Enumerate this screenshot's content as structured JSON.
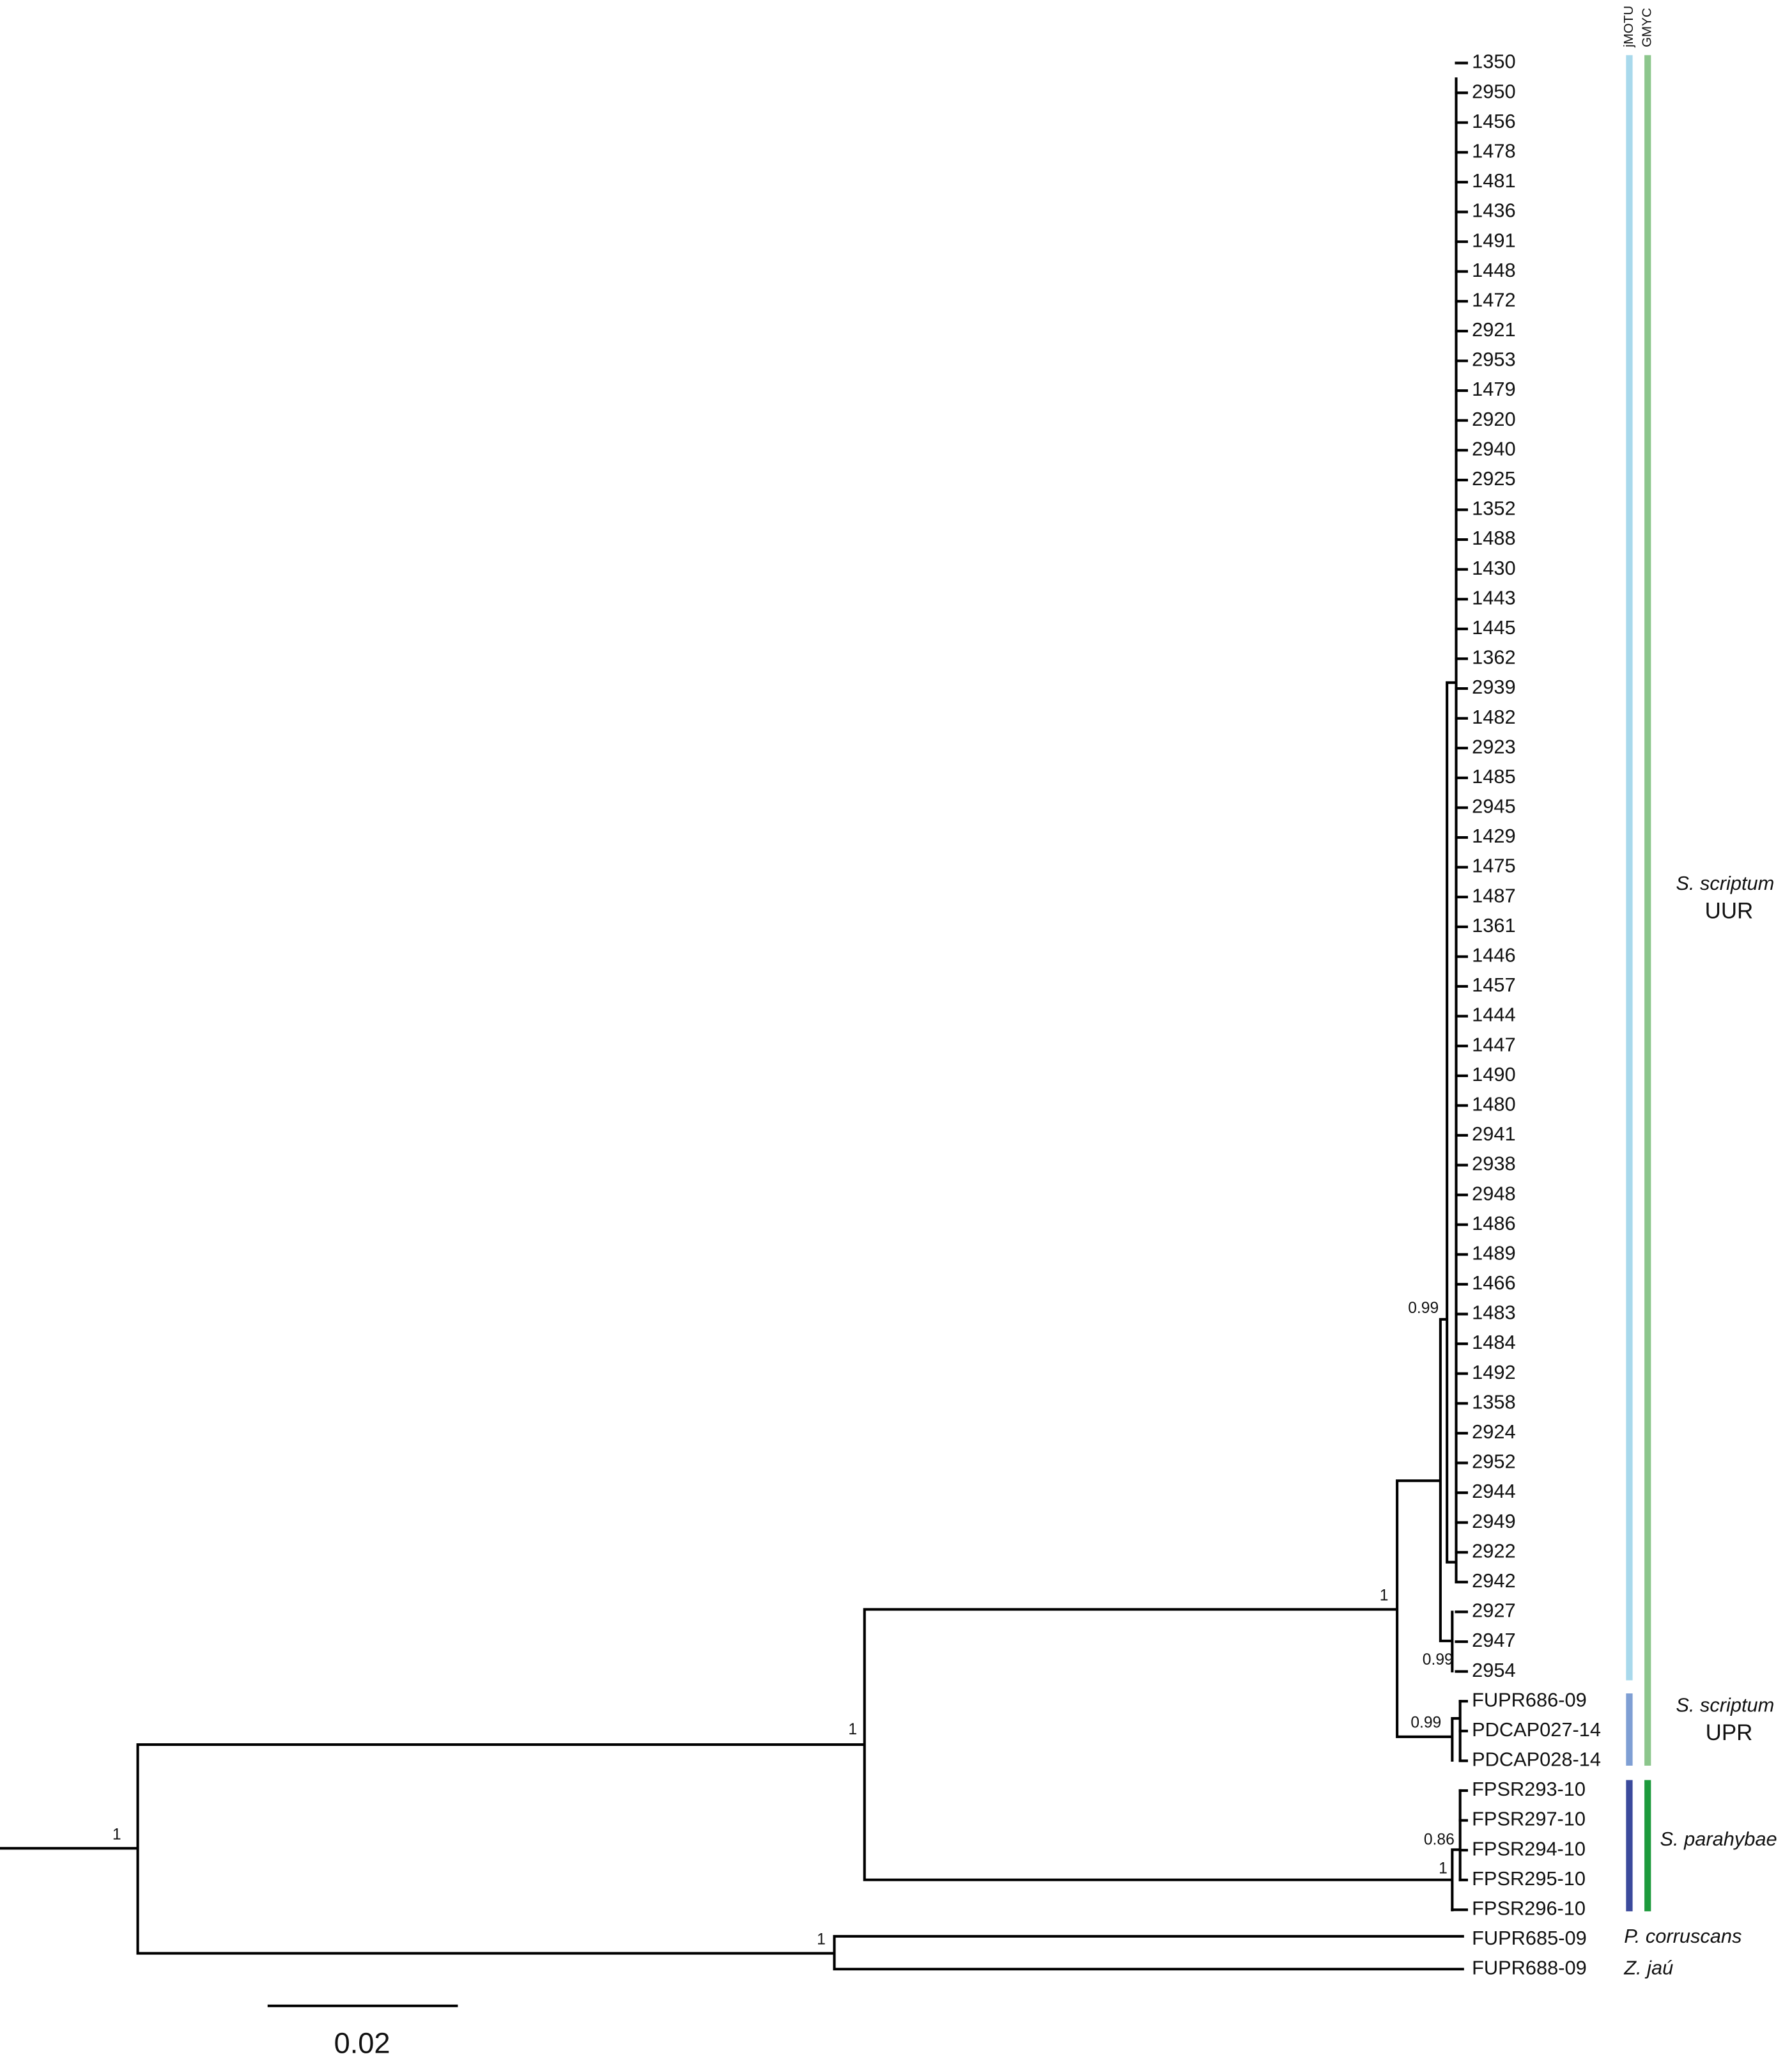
{
  "columns": [
    "jMOTU",
    "GMYC"
  ],
  "leaves": [
    "1350",
    "2950",
    "1456",
    "1478",
    "1481",
    "1436",
    "1491",
    "1448",
    "1472",
    "2921",
    "2953",
    "1479",
    "2920",
    "2940",
    "2925",
    "1352",
    "1488",
    "1430",
    "1443",
    "1445",
    "1362",
    "2939",
    "1482",
    "2923",
    "1485",
    "2945",
    "1429",
    "1475",
    "1487",
    "1361",
    "1446",
    "1457",
    "1444",
    "1447",
    "1490",
    "1480",
    "2941",
    "2938",
    "2948",
    "1486",
    "1489",
    "1466",
    "1483",
    "1484",
    "1492",
    "1358",
    "2924",
    "2952",
    "2944",
    "2949",
    "2922",
    "2942",
    "2927",
    "2947",
    "2954",
    "FUPR686-09",
    "PDCAP027-14",
    "PDCAP028-14",
    "FPSR293-10",
    "FPSR297-10",
    "FPSR294-10",
    "FPSR295-10",
    "FPSR296-10",
    "FUPR685-09",
    "FUPR688-09"
  ],
  "supports": [
    1,
    1,
    1,
    1,
    0.99,
    0.99,
    0.99,
    0.86,
    1
  ],
  "clades": [
    {
      "name": "S. scriptum",
      "group": "UUR"
    },
    {
      "name": "S. scriptum",
      "group": "UPR"
    },
    {
      "name": "S. parahybae"
    },
    {
      "name": "P. corruscans"
    },
    {
      "name": "Z. jaú"
    }
  ],
  "scale_bar": 0.02
}
